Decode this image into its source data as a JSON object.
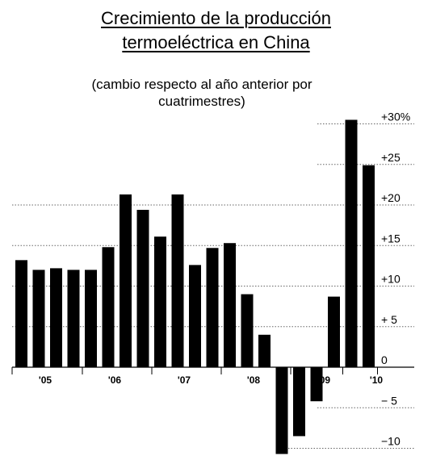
{
  "title_lines": [
    "Crecimiento de la producción",
    "termoeléctrica en China"
  ],
  "subtitle_lines": [
    "(cambio respecto al año anterior por",
    "cuatrimestres)"
  ],
  "chart_data": {
    "type": "bar",
    "title": "Crecimiento de la producción termoeléctrica en China",
    "subtitle": "(cambio respecto al año anterior por cuatrimestres)",
    "ylim": [
      -12,
      31
    ],
    "y_ticks": [
      {
        "value": 30,
        "label": "+30%"
      },
      {
        "value": 25,
        "label": "+25"
      },
      {
        "value": 20,
        "label": "+20"
      },
      {
        "value": 15,
        "label": "+15"
      },
      {
        "value": 10,
        "label": "+10"
      },
      {
        "value": 5,
        "label": "+ 5"
      },
      {
        "value": 0,
        "label": "0"
      },
      {
        "value": -5,
        "label": "− 5"
      },
      {
        "value": -10,
        "label": "−10"
      }
    ],
    "year_labels": [
      "'05",
      "'06",
      "'07",
      "'08",
      "'09",
      "'10"
    ],
    "year_mark": "P",
    "values": [
      13.2,
      12.0,
      12.2,
      12.0,
      12.0,
      14.8,
      21.3,
      19.4,
      16.1,
      21.3,
      12.6,
      14.7,
      15.3,
      9.0,
      4.0,
      -10.7,
      -8.5,
      -4.2,
      8.7,
      30.5,
      24.9
    ],
    "grid": "dotted horizontal",
    "colors": {
      "bar": "#000000",
      "grid": "#666666"
    }
  }
}
